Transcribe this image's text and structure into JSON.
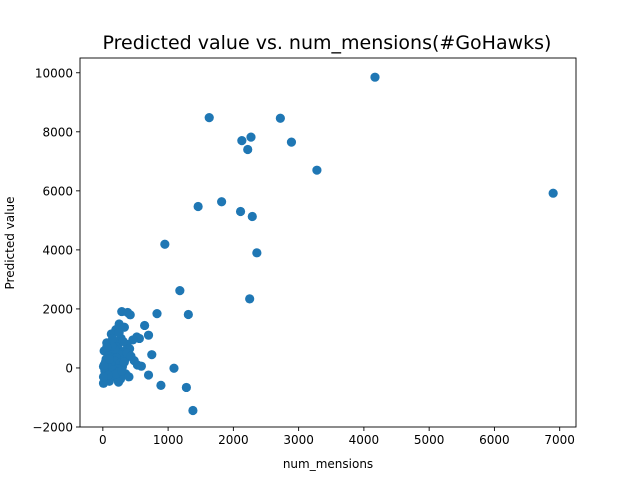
{
  "chart_data": {
    "type": "scatter",
    "title": "Predicted value vs. num_mensions(#GoHawks)",
    "xlabel": "num_mensions",
    "ylabel": "Predicted value",
    "xlim": [
      -350,
      7250
    ],
    "ylim": [
      -2000,
      10500
    ],
    "xticks": [
      0,
      1000,
      2000,
      3000,
      4000,
      5000,
      6000,
      7000
    ],
    "yticks": [
      -2000,
      0,
      2000,
      4000,
      6000,
      8000,
      10000
    ],
    "grid": false,
    "legend": "none",
    "marker_color": "#1f77b4",
    "series": [
      {
        "points": [
          [
            4170,
            9850
          ],
          [
            6900,
            5920
          ],
          [
            2720,
            8460
          ],
          [
            1630,
            8480
          ],
          [
            2130,
            7700
          ],
          [
            2270,
            7820
          ],
          [
            2890,
            7650
          ],
          [
            2220,
            7400
          ],
          [
            3280,
            6700
          ],
          [
            1820,
            5630
          ],
          [
            1460,
            5470
          ],
          [
            2110,
            5300
          ],
          [
            2290,
            5130
          ],
          [
            950,
            4190
          ],
          [
            2360,
            3900
          ],
          [
            1180,
            2620
          ],
          [
            2250,
            2340
          ],
          [
            290,
            1910
          ],
          [
            380,
            1880
          ],
          [
            830,
            1840
          ],
          [
            1310,
            1810
          ],
          [
            420,
            1800
          ],
          [
            250,
            1490
          ],
          [
            640,
            1440
          ],
          [
            200,
            1300
          ],
          [
            330,
            1380
          ],
          [
            130,
            1150
          ],
          [
            700,
            1110
          ],
          [
            520,
            1050
          ],
          [
            560,
            1000
          ],
          [
            280,
            1000
          ],
          [
            460,
            950
          ],
          [
            180,
            880
          ],
          [
            60,
            850
          ],
          [
            370,
            800
          ],
          [
            230,
            720
          ],
          [
            410,
            650
          ],
          [
            110,
            600
          ],
          [
            320,
            560
          ],
          [
            150,
            500
          ],
          [
            20,
            580
          ],
          [
            270,
            450
          ],
          [
            750,
            450
          ],
          [
            80,
            400
          ],
          [
            210,
            350
          ],
          [
            340,
            300
          ],
          [
            170,
            250
          ],
          [
            480,
            250
          ],
          [
            40,
            200
          ],
          [
            260,
            160
          ],
          [
            120,
            120
          ],
          [
            530,
            100
          ],
          [
            590,
            60
          ],
          [
            10,
            50
          ],
          [
            300,
            40
          ],
          [
            90,
            0
          ],
          [
            220,
            -20
          ],
          [
            160,
            -60
          ],
          [
            1090,
            -10
          ],
          [
            30,
            -100
          ],
          [
            240,
            -130
          ],
          [
            130,
            -170
          ],
          [
            350,
            -200
          ],
          [
            700,
            -240
          ],
          [
            60,
            -280
          ],
          [
            190,
            -300
          ],
          [
            400,
            -300
          ],
          [
            270,
            -380
          ],
          [
            100,
            -450
          ],
          [
            240,
            -480
          ],
          [
            10,
            -520
          ],
          [
            890,
            -590
          ],
          [
            1280,
            -660
          ],
          [
            1380,
            -1440
          ],
          [
            50,
            300
          ],
          [
            180,
            650
          ],
          [
            310,
            900
          ],
          [
            140,
            750
          ],
          [
            20,
            100
          ],
          [
            200,
            -200
          ],
          [
            330,
            200
          ],
          [
            80,
            -250
          ],
          [
            150,
            1000
          ],
          [
            250,
            1200
          ],
          [
            370,
            500
          ],
          [
            100,
            300
          ],
          [
            10,
            -300
          ],
          [
            290,
            -100
          ],
          [
            430,
            400
          ],
          [
            60,
            700
          ]
        ]
      }
    ]
  }
}
